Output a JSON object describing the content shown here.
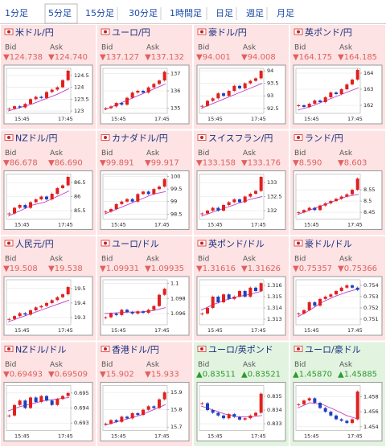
{
  "tabs": [
    "1分足",
    "5分足",
    "15分足",
    "30分足",
    "1時間足",
    "日足",
    "週足",
    "月足"
  ],
  "selected_tab": 1,
  "bid_label": "Bid",
  "ask_label": "Ask",
  "chart_xlabels": [
    "15:45",
    "17:45"
  ],
  "cells": [
    {
      "name": "米ドル/円",
      "bid": "▼124.738",
      "ask": "▼124.740",
      "up": false,
      "ylim": [
        122.9,
        124.8
      ],
      "yticks": [
        124.5,
        124,
        123.5,
        123
      ],
      "values": [
        123.1,
        123.2,
        123.15,
        123.3,
        123.5,
        123.6,
        123.55,
        123.8,
        123.9,
        124.0,
        124.3,
        124.7
      ],
      "ma": [
        123.0,
        123.15,
        123.3,
        123.5,
        123.7,
        123.95
      ]
    },
    {
      "name": "ユーロ/円",
      "bid": "▼137.127",
      "ask": "▼137.132",
      "up": false,
      "ylim": [
        134.7,
        137.3
      ],
      "yticks": [
        137,
        136,
        135
      ],
      "values": [
        135.0,
        135.1,
        135.3,
        135.2,
        135.6,
        135.9,
        136.0,
        135.9,
        136.2,
        136.4,
        136.6,
        137.1
      ],
      "ma": [
        134.9,
        135.2,
        135.5,
        135.8,
        136.1,
        136.4
      ]
    },
    {
      "name": "豪ドル/円",
      "bid": "▼94.001",
      "ask": "▼94.008",
      "up": false,
      "ylim": [
        92.3,
        94.1
      ],
      "yticks": [
        94,
        93.5,
        93,
        92.5
      ],
      "values": [
        92.6,
        92.8,
        92.9,
        93.1,
        93.0,
        93.2,
        93.4,
        93.3,
        93.5,
        93.6,
        93.7,
        94.0
      ],
      "ma": [
        92.5,
        92.7,
        92.9,
        93.1,
        93.3,
        93.5
      ]
    },
    {
      "name": "英ポンド/円",
      "bid": "▼164.175",
      "ask": "▼164.185",
      "up": false,
      "ylim": [
        161.5,
        164.3
      ],
      "yticks": [
        164,
        163,
        162
      ],
      "values": [
        162.0,
        161.9,
        162.1,
        162.3,
        162.2,
        162.5,
        162.8,
        162.7,
        163.0,
        163.3,
        163.6,
        164.2
      ],
      "ma": [
        161.7,
        161.9,
        162.2,
        162.5,
        162.8,
        163.1
      ]
    },
    {
      "name": "NZドル/円",
      "bid": "▼86.678",
      "ask": "▼86.690",
      "up": false,
      "ylim": [
        85.2,
        86.8
      ],
      "yticks": [
        86.5,
        86,
        85.5
      ],
      "values": [
        85.4,
        85.6,
        85.7,
        85.6,
        85.8,
        85.9,
        86.0,
        85.9,
        86.1,
        86.3,
        86.4,
        86.7
      ],
      "ma": [
        85.3,
        85.5,
        85.7,
        85.8,
        86.0,
        86.2
      ]
    },
    {
      "name": "カナダドル/円",
      "bid": "▼99.891",
      "ask": "▼99.917",
      "up": false,
      "ylim": [
        98.3,
        100.1
      ],
      "yticks": [
        100,
        99.5,
        99,
        98.5
      ],
      "values": [
        98.6,
        98.7,
        98.9,
        99.0,
        99.1,
        99.0,
        99.3,
        99.4,
        99.3,
        99.5,
        99.6,
        99.9
      ],
      "ma": [
        98.5,
        98.7,
        98.9,
        99.1,
        99.3,
        99.4
      ]
    },
    {
      "name": "スイスフラン/円",
      "bid": "▼133.158",
      "ask": "▼133.176",
      "up": false,
      "ylim": [
        131.7,
        133.3
      ],
      "yticks": [
        133,
        132.5,
        132
      ],
      "values": [
        131.9,
        132.0,
        132.1,
        132.0,
        132.2,
        132.3,
        132.4,
        132.3,
        132.5,
        132.6,
        132.7,
        133.2
      ],
      "ma": [
        131.8,
        131.95,
        132.1,
        132.25,
        132.4,
        132.5
      ]
    },
    {
      "name": "ランド/円",
      "bid": "▼8.590",
      "ask": "▼8.603",
      "up": false,
      "ylim": [
        8.42,
        8.62
      ],
      "yticks": [
        8.55,
        8.5,
        8.45
      ],
      "values": [
        8.45,
        8.46,
        8.47,
        8.46,
        8.48,
        8.49,
        8.5,
        8.51,
        8.52,
        8.53,
        8.55,
        8.6
      ],
      "ma": [
        8.44,
        8.46,
        8.48,
        8.5,
        8.52,
        8.53
      ]
    },
    {
      "name": "人民元/円",
      "bid": "▼19.508",
      "ask": "▼19.538",
      "up": false,
      "ylim": [
        19.25,
        19.56
      ],
      "yticks": [
        19.5,
        19.4,
        19.3
      ],
      "values": [
        19.29,
        19.31,
        19.33,
        19.32,
        19.35,
        19.37,
        19.38,
        19.4,
        19.42,
        19.44,
        19.46,
        19.51
      ],
      "ma": [
        19.27,
        19.3,
        19.33,
        19.36,
        19.39,
        19.42
      ]
    },
    {
      "name": "ユーロ/ドル",
      "bid": "▼1.09931",
      "ask": "▼1.09935",
      "up": false,
      "ylim": [
        1.0945,
        1.1005
      ],
      "yticks": [
        1.1,
        1.098,
        1.096
      ],
      "values": [
        1.0955,
        1.096,
        1.0958,
        1.0965,
        1.0962,
        1.096,
        1.0963,
        1.0961,
        1.0965,
        1.097,
        1.0985,
        1.0993
      ],
      "ma": [
        1.096,
        1.0961,
        1.0962,
        1.0962,
        1.0964,
        1.0968
      ]
    },
    {
      "name": "英ポンド/ドル",
      "bid": "▼1.31616",
      "ask": "▼1.31626",
      "up": false,
      "ylim": [
        1.3125,
        1.3165
      ],
      "yticks": [
        1.316,
        1.315,
        1.314,
        1.313
      ],
      "values": [
        1.3135,
        1.314,
        1.315,
        1.3145,
        1.3152,
        1.3148,
        1.315,
        1.3155,
        1.315,
        1.3158,
        1.3155,
        1.3162
      ],
      "ma": [
        1.3138,
        1.3143,
        1.3147,
        1.315,
        1.3152,
        1.3155
      ]
    },
    {
      "name": "豪ドル/ドル",
      "bid": "▼0.75357",
      "ask": "▼0.75366",
      "up": false,
      "ylim": [
        0.7505,
        0.7545
      ],
      "yticks": [
        0.754,
        0.753,
        0.752,
        0.751
      ],
      "values": [
        0.7515,
        0.7518,
        0.7525,
        0.7522,
        0.7528,
        0.753,
        0.7532,
        0.7535,
        0.7538,
        0.754,
        0.7538,
        0.7536
      ],
      "ma": [
        0.7512,
        0.7518,
        0.7525,
        0.753,
        0.7534,
        0.7537
      ]
    },
    {
      "name": "NZドル/ドル",
      "bid": "▼0.69493",
      "ask": "▼0.69509",
      "up": false,
      "ylim": [
        0.6925,
        0.6955
      ],
      "yticks": [
        0.695,
        0.694,
        0.693
      ],
      "values": [
        0.6935,
        0.6942,
        0.6945,
        0.694,
        0.6947,
        0.6944,
        0.6948,
        0.6945,
        0.6942,
        0.6946,
        0.6948,
        0.695
      ],
      "ma": [
        0.6938,
        0.6941,
        0.6943,
        0.6945,
        0.6946,
        0.6947
      ]
    },
    {
      "name": "香港ドル/円",
      "bid": "▼15.902",
      "ask": "▼15.933",
      "up": false,
      "ylim": [
        15.68,
        15.94
      ],
      "yticks": [
        15.9,
        15.8,
        15.7
      ],
      "values": [
        15.72,
        15.74,
        15.73,
        15.76,
        15.75,
        15.78,
        15.77,
        15.8,
        15.82,
        15.81,
        15.86,
        15.9
      ],
      "ma": [
        15.71,
        15.73,
        15.75,
        15.77,
        15.8,
        15.83
      ]
    },
    {
      "name": "ユーロ/英ポンド",
      "bid": "▲0.83511",
      "ask": "▲0.83521",
      "up": true,
      "ylim": [
        0.8325,
        0.8358
      ],
      "yticks": [
        0.835,
        0.834,
        0.833
      ],
      "values": [
        0.8345,
        0.834,
        0.8338,
        0.8336,
        0.8334,
        0.8337,
        0.8335,
        0.8333,
        0.8334,
        0.8336,
        0.8338,
        0.8352
      ],
      "ma": [
        0.8343,
        0.834,
        0.8337,
        0.8335,
        0.8335,
        0.8336
      ]
    },
    {
      "name": "ユーロ/豪ドル",
      "bid": "▲1.45870",
      "ask": "▲1.45885",
      "up": true,
      "ylim": [
        1.4535,
        1.4595
      ],
      "yticks": [
        1.458,
        1.456,
        1.454
      ],
      "values": [
        1.457,
        1.4575,
        1.4578,
        1.4572,
        1.4565,
        1.456,
        1.4555,
        1.455,
        1.4548,
        1.4545,
        1.455,
        1.4587
      ],
      "ma": [
        1.4565,
        1.4572,
        1.457,
        1.4563,
        1.4555,
        1.455
      ]
    }
  ]
}
